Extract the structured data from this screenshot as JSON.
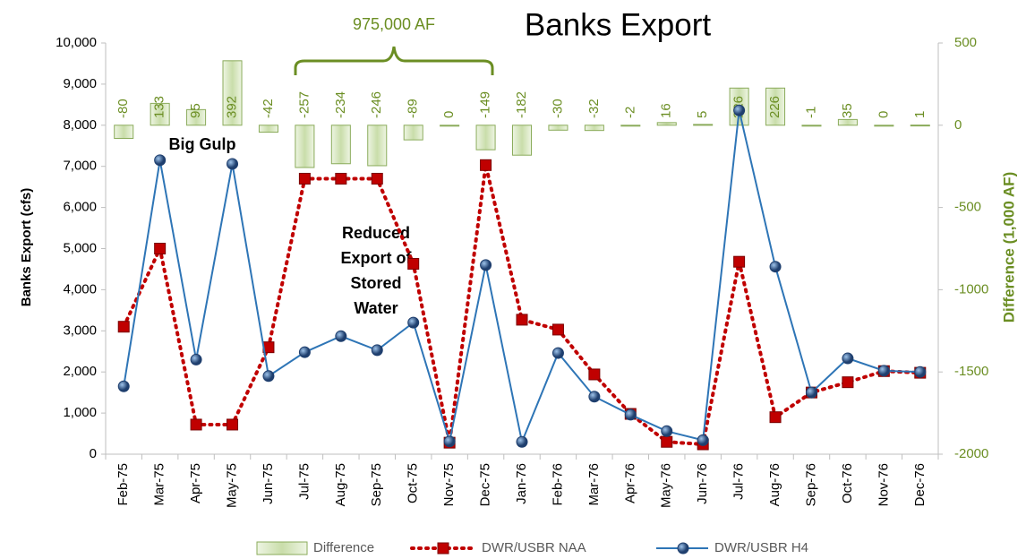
{
  "chart_data": {
    "type": "combo",
    "title": "Banks Export",
    "y_label": "Banks Export (cfs)",
    "y2_label": "Difference (1,000 AF)",
    "annotations": {
      "bracket": "975,000 AF",
      "big_gulp": "Big Gulp",
      "reduced": [
        "Reduced",
        "Export of",
        "Stored",
        "Water"
      ]
    },
    "categories": [
      "Feb-75",
      "Mar-75",
      "Apr-75",
      "May-75",
      "Jun-75",
      "Jul-75",
      "Aug-75",
      "Sep-75",
      "Oct-75",
      "Nov-75",
      "Dec-75",
      "Jan-76",
      "Feb-76",
      "Mar-76",
      "Apr-76",
      "May-76",
      "Jun-76",
      "Jul-76",
      "Aug-76",
      "Sep-76",
      "Oct-76",
      "Nov-76",
      "Dec-76"
    ],
    "series": [
      {
        "name": "Difference",
        "type": "bar",
        "axis": "y2",
        "color": "#d6e6bf",
        "values": [
          -80,
          133,
          95,
          392,
          -42,
          -257,
          -234,
          -246,
          -89,
          0,
          -149,
          -182,
          -30,
          -32,
          -2,
          16,
          5,
          226,
          226,
          -1,
          35,
          0,
          1
        ]
      },
      {
        "name": "DWR/USBR NAA",
        "type": "line",
        "color": "#c00000",
        "values": [
          3100,
          5000,
          720,
          720,
          2600,
          6700,
          6700,
          6700,
          4630,
          280,
          7030,
          3270,
          3030,
          1940,
          980,
          300,
          240,
          4680,
          900,
          1500,
          1750,
          2020,
          1980
        ]
      },
      {
        "name": "DWR/USBR H4",
        "type": "line",
        "color": "#2e75b6",
        "values": [
          1650,
          7150,
          2300,
          7060,
          1900,
          2480,
          2870,
          2530,
          3200,
          310,
          4600,
          300,
          2460,
          1400,
          960,
          560,
          340,
          8360,
          4560,
          1500,
          2330,
          2030,
          2000
        ]
      }
    ],
    "ylim": [
      0,
      10000
    ],
    "yticks": [
      0,
      {
        "value": 1000,
        "label": "1,000"
      },
      {
        "value": 2000,
        "label": "2,000"
      },
      {
        "value": 3000,
        "label": "3,000"
      },
      {
        "value": 4000,
        "label": "4,000"
      },
      {
        "value": 5000,
        "label": "5,000"
      },
      {
        "value": 6000,
        "label": "6,000"
      },
      {
        "value": 7000,
        "label": "7,000"
      },
      {
        "value": 8000,
        "label": "8,000"
      },
      {
        "value": 9000,
        "label": "9,000"
      },
      {
        "value": 10000,
        "label": "10,000"
      }
    ],
    "y2lim": [
      -2000,
      500
    ],
    "y2ticks": [
      -2000,
      -1500,
      -1000,
      -500,
      0,
      500
    ],
    "grid": false,
    "legend": "bottom"
  }
}
